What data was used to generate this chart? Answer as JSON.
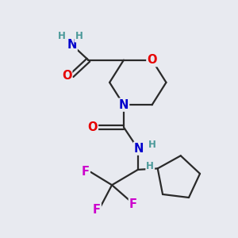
{
  "background_color": "#e8eaf0",
  "bond_color": "#2a2a2a",
  "oxygen_color": "#e60000",
  "nitrogen_color": "#0000cc",
  "fluorine_color": "#cc00cc",
  "hydrogen_color": "#4a9999",
  "figsize": [
    3.0,
    3.0
  ],
  "dpi": 100,
  "xlim": [
    0,
    10
  ],
  "ylim": [
    0,
    10
  ]
}
